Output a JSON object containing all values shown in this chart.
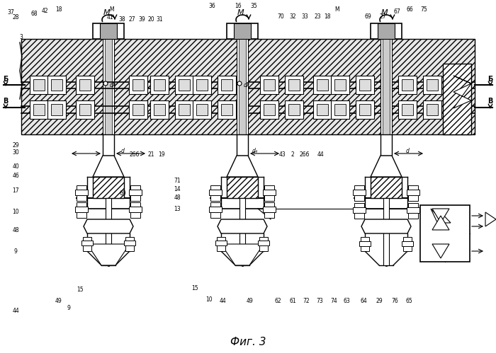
{
  "title": "Фиг. 3",
  "bg_color": "#ffffff",
  "line_color": "#000000",
  "figsize": [
    7.0,
    4.99
  ],
  "dpi": 100,
  "labels_top_left": [
    [
      15,
      18,
      "37"
    ],
    [
      22,
      25,
      "28"
    ],
    [
      48,
      20,
      "68"
    ],
    [
      62,
      17,
      "42"
    ],
    [
      82,
      14,
      "18"
    ],
    [
      167,
      14,
      "M"
    ],
    [
      155,
      22,
      "41"
    ],
    [
      173,
      25,
      "38"
    ],
    [
      188,
      25,
      "27"
    ],
    [
      200,
      25,
      "39"
    ],
    [
      213,
      25,
      "20"
    ],
    [
      224,
      25,
      "31"
    ]
  ],
  "labels_top_mid": [
    [
      299,
      9,
      "36"
    ],
    [
      337,
      9,
      "16"
    ],
    [
      358,
      9,
      "35"
    ],
    [
      395,
      22,
      "70"
    ],
    [
      413,
      22,
      "32"
    ],
    [
      430,
      22,
      "33"
    ],
    [
      447,
      22,
      "23"
    ],
    [
      461,
      22,
      "18"
    ],
    [
      475,
      14,
      "M"
    ]
  ],
  "labels_top_right": [
    [
      519,
      22,
      "69"
    ],
    [
      540,
      22,
      "27"
    ],
    [
      560,
      17,
      "67"
    ],
    [
      578,
      14,
      "66"
    ],
    [
      596,
      14,
      "75"
    ]
  ],
  "labels_left": [
    [
      18,
      120,
      "䄞"
    ],
    [
      18,
      148,
      "В"
    ]
  ],
  "labels_right": [
    [
      682,
      120,
      "䄞"
    ],
    [
      682,
      148,
      "В"
    ]
  ]
}
